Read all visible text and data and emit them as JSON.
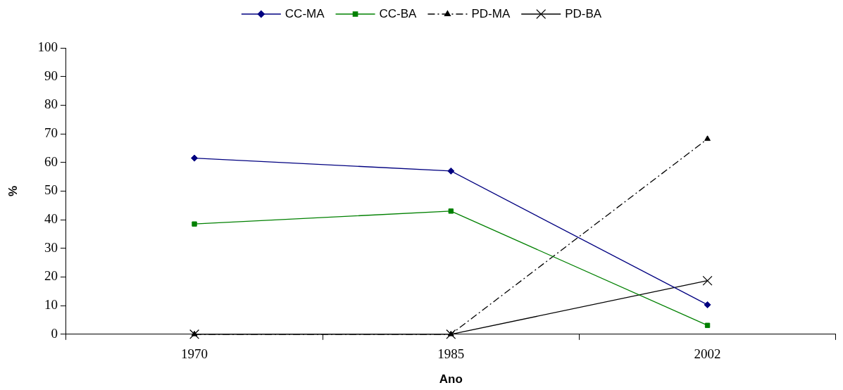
{
  "chart_data": {
    "type": "line",
    "xlabel": "Ano",
    "ylabel": "%",
    "categories": [
      "1970",
      "1985",
      "2002"
    ],
    "series": [
      {
        "name": "CC-MA",
        "color": "#000080",
        "values": [
          61.5,
          57,
          10.3
        ],
        "marker": "diamond",
        "line_style": "solid"
      },
      {
        "name": "CC-BA",
        "color": "#008000",
        "values": [
          38.5,
          43,
          3.1
        ],
        "marker": "square",
        "line_style": "solid"
      },
      {
        "name": "PD-MA",
        "color": "#000000",
        "values": [
          0,
          0,
          68.2
        ],
        "marker": "triangle",
        "line_style": "dashed"
      },
      {
        "name": "PD-BA",
        "color": "#000000",
        "values": [
          0,
          0,
          18.7
        ],
        "marker": "cross",
        "line_style": "solid"
      }
    ],
    "ylim": [
      0,
      100
    ],
    "yticks": [
      0,
      10,
      20,
      30,
      40,
      50,
      60,
      70,
      80,
      90,
      100
    ],
    "grid": false,
    "legend": "top"
  }
}
